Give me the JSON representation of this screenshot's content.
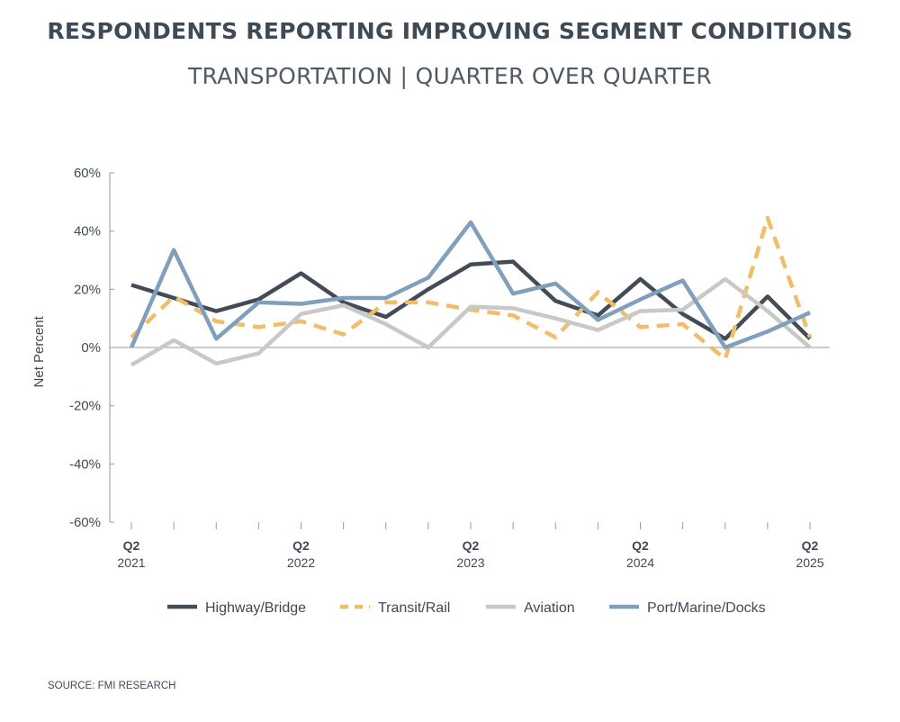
{
  "chart_data": {
    "type": "line",
    "title": "RESPONDENTS REPORTING IMPROVING SEGMENT CONDITIONS",
    "subtitle": "TRANSPORTATION | QUARTER OVER QUARTER",
    "ylabel": "Net Percent",
    "xlabel": "",
    "ylim": [
      -60,
      60
    ],
    "yticks": [
      60,
      40,
      20,
      0,
      -20,
      -40,
      -60
    ],
    "ytick_labels": [
      "60%",
      "40%",
      "20%",
      "0%",
      "-20%",
      "-40%",
      "-60%"
    ],
    "x": [
      "Q2 2021",
      "Q3 2021",
      "Q4 2021",
      "Q1 2022",
      "Q2 2022",
      "Q3 2022",
      "Q4 2022",
      "Q1 2023",
      "Q2 2023",
      "Q3 2023",
      "Q4 2023",
      "Q1 2024",
      "Q2 2024",
      "Q3 2024",
      "Q4 2024",
      "Q1 2025",
      "Q2 2025"
    ],
    "x_tick_labels": [
      {
        "index": 0,
        "quarter": "Q2",
        "year": "2021"
      },
      {
        "index": 4,
        "quarter": "Q2",
        "year": "2022"
      },
      {
        "index": 8,
        "quarter": "Q2",
        "year": "2023"
      },
      {
        "index": 12,
        "quarter": "Q2",
        "year": "2024"
      },
      {
        "index": 16,
        "quarter": "Q2",
        "year": "2025"
      }
    ],
    "legend_position": "bottom",
    "series": [
      {
        "name": "Highway/Bridge",
        "color": "#434c56",
        "dash": "solid",
        "values": [
          21.5,
          17,
          12.5,
          16.5,
          25.5,
          15.5,
          10.5,
          20,
          28.5,
          29.5,
          16,
          11,
          23.5,
          11.5,
          3,
          17.5,
          3
        ]
      },
      {
        "name": "Transit/Rail",
        "color": "#f0bd6a",
        "dash": "dashed",
        "values": [
          3.5,
          17.5,
          9,
          7,
          9,
          4.5,
          15.5,
          15.5,
          13,
          11,
          3.5,
          19,
          7,
          8,
          -4,
          44.5,
          3.5
        ]
      },
      {
        "name": "Aviation",
        "color": "#c8c8c6",
        "dash": "solid",
        "values": [
          -6,
          2.5,
          -5.5,
          -2,
          11.5,
          14.5,
          8,
          0,
          14,
          13.5,
          10,
          6,
          12.5,
          13,
          23.5,
          12.5,
          0
        ]
      },
      {
        "name": "Port/Marine/Docks",
        "color": "#7f9fbd",
        "dash": "solid",
        "values": [
          0,
          33.5,
          3,
          15.5,
          15,
          17,
          17,
          24,
          43,
          18.5,
          22,
          9.5,
          16.5,
          23,
          0,
          5.5,
          12
        ]
      }
    ]
  },
  "footer": {
    "source": "SOURCE: FMI RESEARCH"
  }
}
